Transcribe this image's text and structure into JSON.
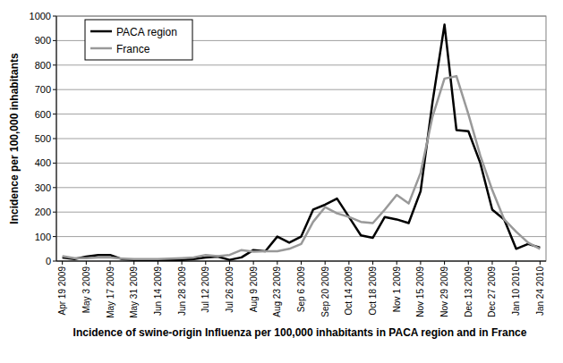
{
  "chart_data": {
    "type": "line",
    "x_label": "Incidence of swine-origin Influenza per 100,000 inhabitants in PACA region and in France",
    "y_label": "Incidence per 100,000 inhabitants",
    "categories": [
      "Apr 19 2009",
      null,
      "May 3 2009",
      null,
      "May 17 2009",
      null,
      "May 31 2009",
      null,
      "Jun 14 2009",
      null,
      "Jun 28 2009",
      null,
      "Jul 12 2009",
      null,
      "Jul 26 2009",
      null,
      "Aug 9 2009",
      null,
      "Aug 23 2009",
      null,
      "Sep 6 2009",
      null,
      "Sep 20 2009",
      null,
      "Oct 14 2009",
      null,
      "Oct 18 2009",
      null,
      "Nov 1 2009",
      null,
      "Nov 15 2009",
      null,
      "Nov 29 2009",
      null,
      "Dec 13 2009",
      null,
      "Dec 27 2009",
      null,
      "Jan 10 2010",
      null,
      "Jan 24 2010"
    ],
    "series": [
      {
        "name": "PACA region",
        "color": "#000000",
        "values": [
          15,
          8,
          18,
          25,
          25,
          8,
          5,
          3,
          5,
          5,
          5,
          8,
          15,
          18,
          5,
          15,
          45,
          40,
          100,
          75,
          100,
          210,
          230,
          255,
          180,
          105,
          95,
          180,
          170,
          155,
          285,
          650,
          965,
          535,
          530,
          400,
          210,
          170,
          50,
          70,
          55
        ]
      },
      {
        "name": "France",
        "color": "#999999",
        "values": [
          20,
          12,
          12,
          15,
          15,
          10,
          8,
          8,
          8,
          10,
          12,
          15,
          25,
          20,
          25,
          45,
          38,
          40,
          40,
          50,
          70,
          160,
          220,
          195,
          180,
          160,
          155,
          210,
          270,
          235,
          360,
          590,
          745,
          755,
          600,
          430,
          290,
          170,
          120,
          75,
          50
        ]
      }
    ],
    "ylim": [
      0,
      1000
    ],
    "yticks": [
      0,
      100,
      200,
      300,
      400,
      500,
      600,
      700,
      800,
      900,
      1000
    ],
    "grid": true,
    "legend": "upper left"
  }
}
